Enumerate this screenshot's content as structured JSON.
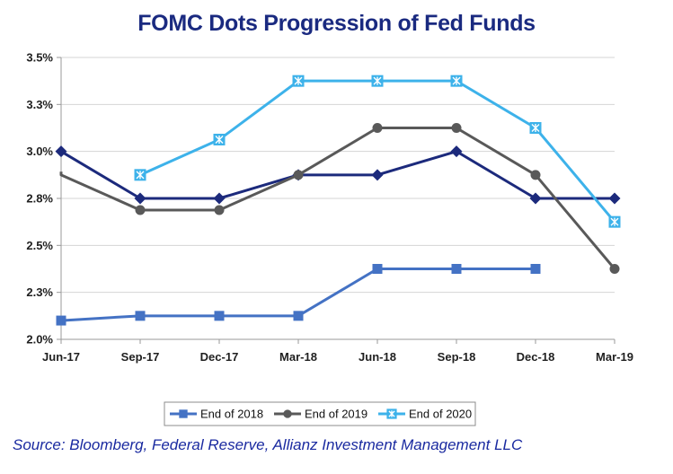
{
  "title": "FOMC Dots Progression of Fed Funds",
  "source": "Source:  Bloomberg, Federal Reserve, Allianz Investment Management LLC",
  "colors": {
    "axis": "#9a9a9a",
    "grid": "#d4d4d4",
    "tick_text": "#1f1f1f"
  },
  "chart_data": {
    "type": "line",
    "title": "FOMC Dots Progression of Fed Funds",
    "xlabel": "",
    "ylabel": "",
    "categories": [
      "Jun-17",
      "Sep-17",
      "Dec-17",
      "Mar-18",
      "Jun-18",
      "Sep-18",
      "Dec-18",
      "Mar-19"
    ],
    "ylim": [
      2.0,
      3.5
    ],
    "y_ticks": [
      2.0,
      2.25,
      2.5,
      2.75,
      3.0,
      3.25,
      3.5
    ],
    "y_tick_labels": [
      "2.0%",
      "2.3%",
      "2.5%",
      "2.8%",
      "3.0%",
      "3.3%",
      "3.5%"
    ],
    "grid": true,
    "series": [
      {
        "name": "End of 2018",
        "color": "#4472c4",
        "marker": "square",
        "values": [
          2.1,
          2.125,
          2.125,
          2.125,
          2.375,
          2.375,
          2.375,
          null
        ],
        "end_x": 6
      },
      {
        "name": "End of 2019",
        "color": "#595959",
        "marker": "circle",
        "values": [
          2.875,
          2.688,
          2.688,
          2.875,
          3.125,
          3.125,
          2.875,
          2.375
        ],
        "start_x": -0.15,
        "end_x": 7
      },
      {
        "name": "End of 2020",
        "color": "#3db2ea",
        "marker": "x-square",
        "values": [
          null,
          2.875,
          3.063,
          3.375,
          3.375,
          3.375,
          3.125,
          2.625
        ],
        "end_x": 7
      },
      {
        "name": "Unlabeled (dark navy)",
        "color": "#1c2a7c",
        "marker": "diamond",
        "show_in_legend": false,
        "values": [
          3.0,
          2.75,
          2.75,
          2.875,
          2.875,
          3.0,
          2.75,
          2.75
        ],
        "end_x": 7
      }
    ],
    "legend": {
      "placement": "bottom-center",
      "entries": [
        "End of 2018",
        "End of 2019",
        "End of 2020"
      ]
    }
  }
}
